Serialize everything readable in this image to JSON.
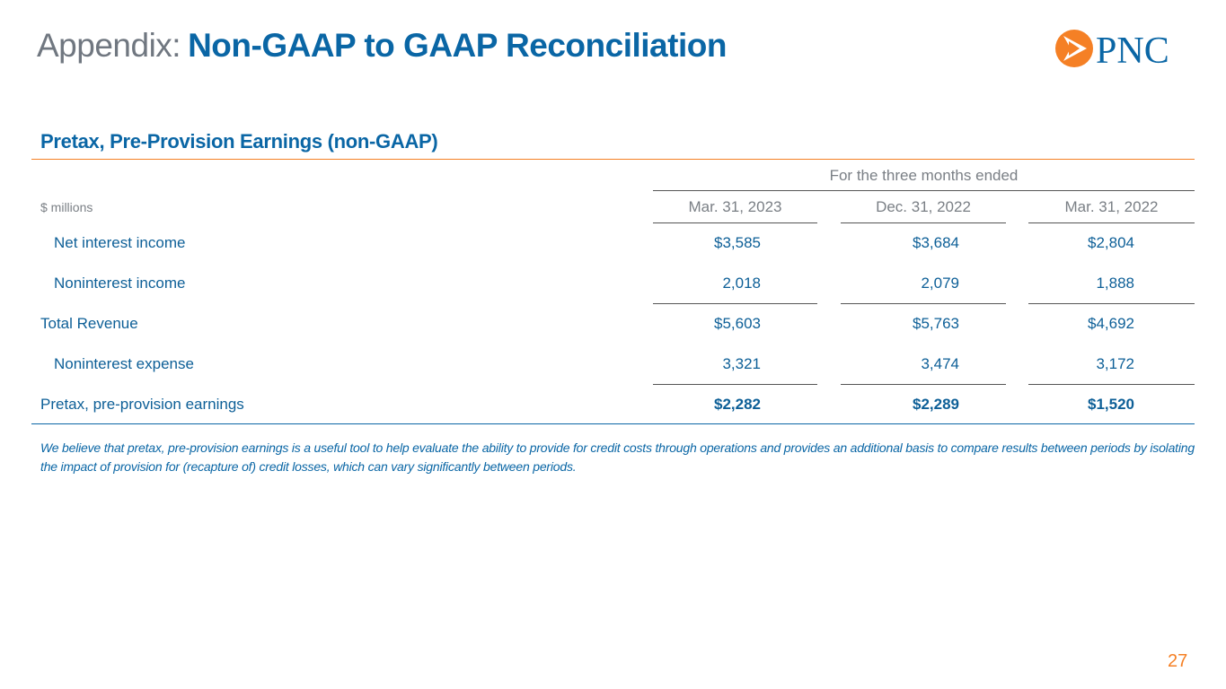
{
  "header": {
    "prefix": "Appendix:",
    "title": "Non-GAAP to GAAP Reconciliation",
    "logo": "PNC"
  },
  "section_title": "Pretax, Pre-Provision Earnings (non-GAAP)",
  "table": {
    "group_header": "For the three months ended",
    "unit": "$ millions",
    "columns": [
      "Mar. 31, 2023",
      "Dec. 31, 2022",
      "Mar. 31, 2022"
    ],
    "rows": [
      [
        "Net interest income",
        "$3,585",
        "$3,684",
        "$2,804"
      ],
      [
        "Noninterest income",
        "2,018",
        "2,079",
        "1,888"
      ],
      [
        "Total Revenue",
        "$5,603",
        "$5,763",
        "$4,692"
      ],
      [
        "Noninterest expense",
        "3,321",
        "3,474",
        "3,172"
      ],
      [
        "Pretax, pre-provision earnings",
        "$2,282",
        "$2,289",
        "$1,520"
      ]
    ]
  },
  "footnote": "We believe that pretax, pre-provision earnings is a useful tool to help evaluate the ability to provide for credit costs through operations and provides an additional basis to compare results between periods by isolating the impact of provision for (recapture of) credit losses, which can vary significantly between periods.",
  "page_number": "27"
}
